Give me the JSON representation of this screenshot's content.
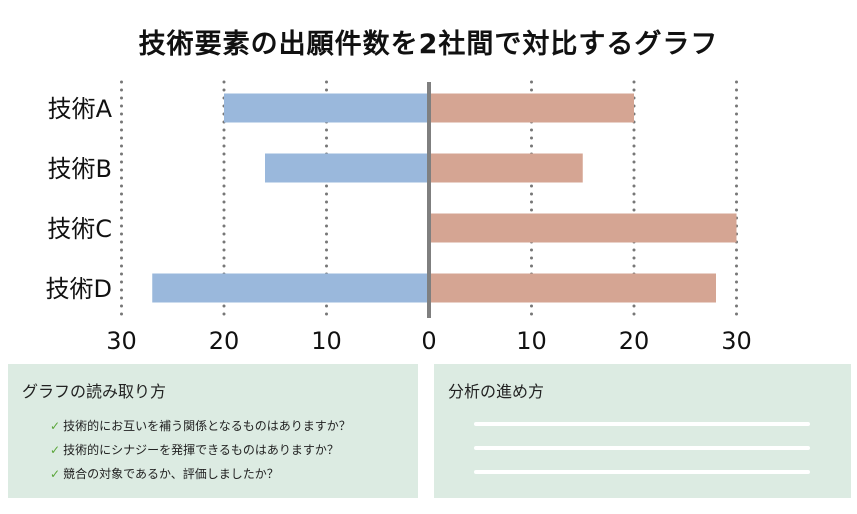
{
  "title": "技術要素の出願件数を2社間で対比するグラフ",
  "chart_data": {
    "type": "bar",
    "orientation": "horizontal-diverging",
    "categories": [
      "技術A",
      "技術B",
      "技術C",
      "技術D"
    ],
    "series": [
      {
        "values": [
          20,
          16,
          0,
          27
        ],
        "color": "#9ab8dc",
        "side": "left"
      },
      {
        "values": [
          20,
          15,
          30,
          28
        ],
        "color": "#d5a593",
        "side": "right"
      }
    ],
    "xlim": [
      -30,
      30
    ],
    "x_ticks": [
      {
        "value": -30,
        "label": "30"
      },
      {
        "value": -20,
        "label": "20"
      },
      {
        "value": -10,
        "label": "10"
      },
      {
        "value": 0,
        "label": "0"
      },
      {
        "value": 10,
        "label": "10"
      },
      {
        "value": 20,
        "label": "20"
      },
      {
        "value": 30,
        "label": "30"
      }
    ],
    "grid": "vertical-dotted",
    "xlabel": "",
    "ylabel": ""
  },
  "reading_panel": {
    "title": "グラフの読み取り方",
    "items": [
      "技術的にお互いを補う関係となるものはありますか？",
      "技術的にシナジーを発揮できるものはありますか？",
      "競合の対象であるか、評価しましたか？"
    ],
    "check_icon": "check-icon"
  },
  "method_panel": {
    "title": "分析の進め方",
    "blank_lines": 3
  }
}
